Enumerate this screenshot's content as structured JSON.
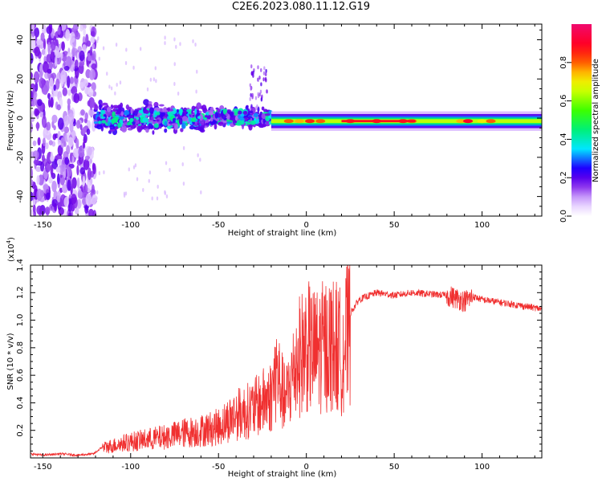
{
  "title": "C2E6.2023.080.11.12.G19",
  "chart_data": [
    {
      "type": "heatmap",
      "xlabel": "Height of straight line (km)",
      "ylabel": "Frequency (Hz)",
      "xlim": [
        -157,
        134
      ],
      "ylim": [
        -50,
        48
      ],
      "xticks": [
        -150,
        -100,
        -50,
        0,
        50,
        100
      ],
      "yticks": [
        -40,
        -20,
        0,
        20,
        40
      ],
      "colorbar": {
        "label": "Normalized spectral amplitude",
        "range": [
          0,
          1
        ],
        "ticks": [
          0.0,
          0.2,
          0.4,
          0.6,
          0.8
        ],
        "tick_labels": [
          "0.0",
          "0.2",
          "0.4",
          "0.6",
          "0.8"
        ],
        "colormap": "rainbow (white → violet → blue → cyan → green → yellow → red → magenta)"
      },
      "regions": [
        {
          "x_range": [
            -157,
            -120
          ],
          "freq_range": [
            -50,
            48
          ],
          "amplitude": [
            0.05,
            0.2
          ],
          "pattern": "scattered noise"
        },
        {
          "x_range": [
            -120,
            -20
          ],
          "freq_range": [
            -12,
            10
          ],
          "amplitude": [
            0.1,
            0.45
          ],
          "pattern": "scattered patches around 0 Hz"
        },
        {
          "x_range": [
            -20,
            134
          ],
          "freq_range": [
            -3,
            1
          ],
          "amplitude": [
            0.4,
            0.9
          ],
          "pattern": "narrow line at about -1.5 Hz"
        }
      ]
    },
    {
      "type": "line",
      "xlabel": "Height of straight line (km)",
      "ylabel": "SNR (10 * v/v)",
      "yscale_label": "(x10",
      "yscale_exp": "4",
      "yscale_close": ")",
      "xlim": [
        -157,
        134
      ],
      "ylim": [
        0,
        1.4
      ],
      "xticks": [
        -150,
        -100,
        -50,
        0,
        50,
        100
      ],
      "yticks": [
        0.2,
        0.4,
        0.6,
        0.8,
        1.0,
        1.2,
        1.4
      ],
      "ytick_labels": [
        "0.2",
        "0.4",
        "0.6",
        "0.8",
        "1.0",
        "1.2",
        "1.4"
      ],
      "color": "#f03030",
      "series": [
        {
          "x": [
            -157,
            -150,
            -140,
            -130,
            -121,
            -116,
            -110,
            -100,
            -90,
            -80,
            -70,
            -60,
            -50,
            -45,
            -40,
            -35,
            -30,
            -25,
            -20,
            -17,
            -15,
            -12,
            -10,
            -5,
            0,
            5,
            10,
            15,
            20,
            25,
            30,
            40,
            50,
            60,
            70,
            80,
            85,
            90,
            95,
            100,
            110,
            120,
            130,
            134
          ],
          "y": [
            0.03,
            0.02,
            0.03,
            0.02,
            0.03,
            0.08,
            0.1,
            0.13,
            0.15,
            0.17,
            0.2,
            0.22,
            0.25,
            0.3,
            0.35,
            0.37,
            0.4,
            0.45,
            0.5,
            0.7,
            0.6,
            0.45,
            0.55,
            0.8,
            0.9,
            0.85,
            0.9,
            0.92,
            0.85,
            1.05,
            1.15,
            1.2,
            1.18,
            1.2,
            1.19,
            1.18,
            1.16,
            1.14,
            1.17,
            1.15,
            1.13,
            1.11,
            1.09,
            1.08
          ]
        }
      ]
    }
  ]
}
